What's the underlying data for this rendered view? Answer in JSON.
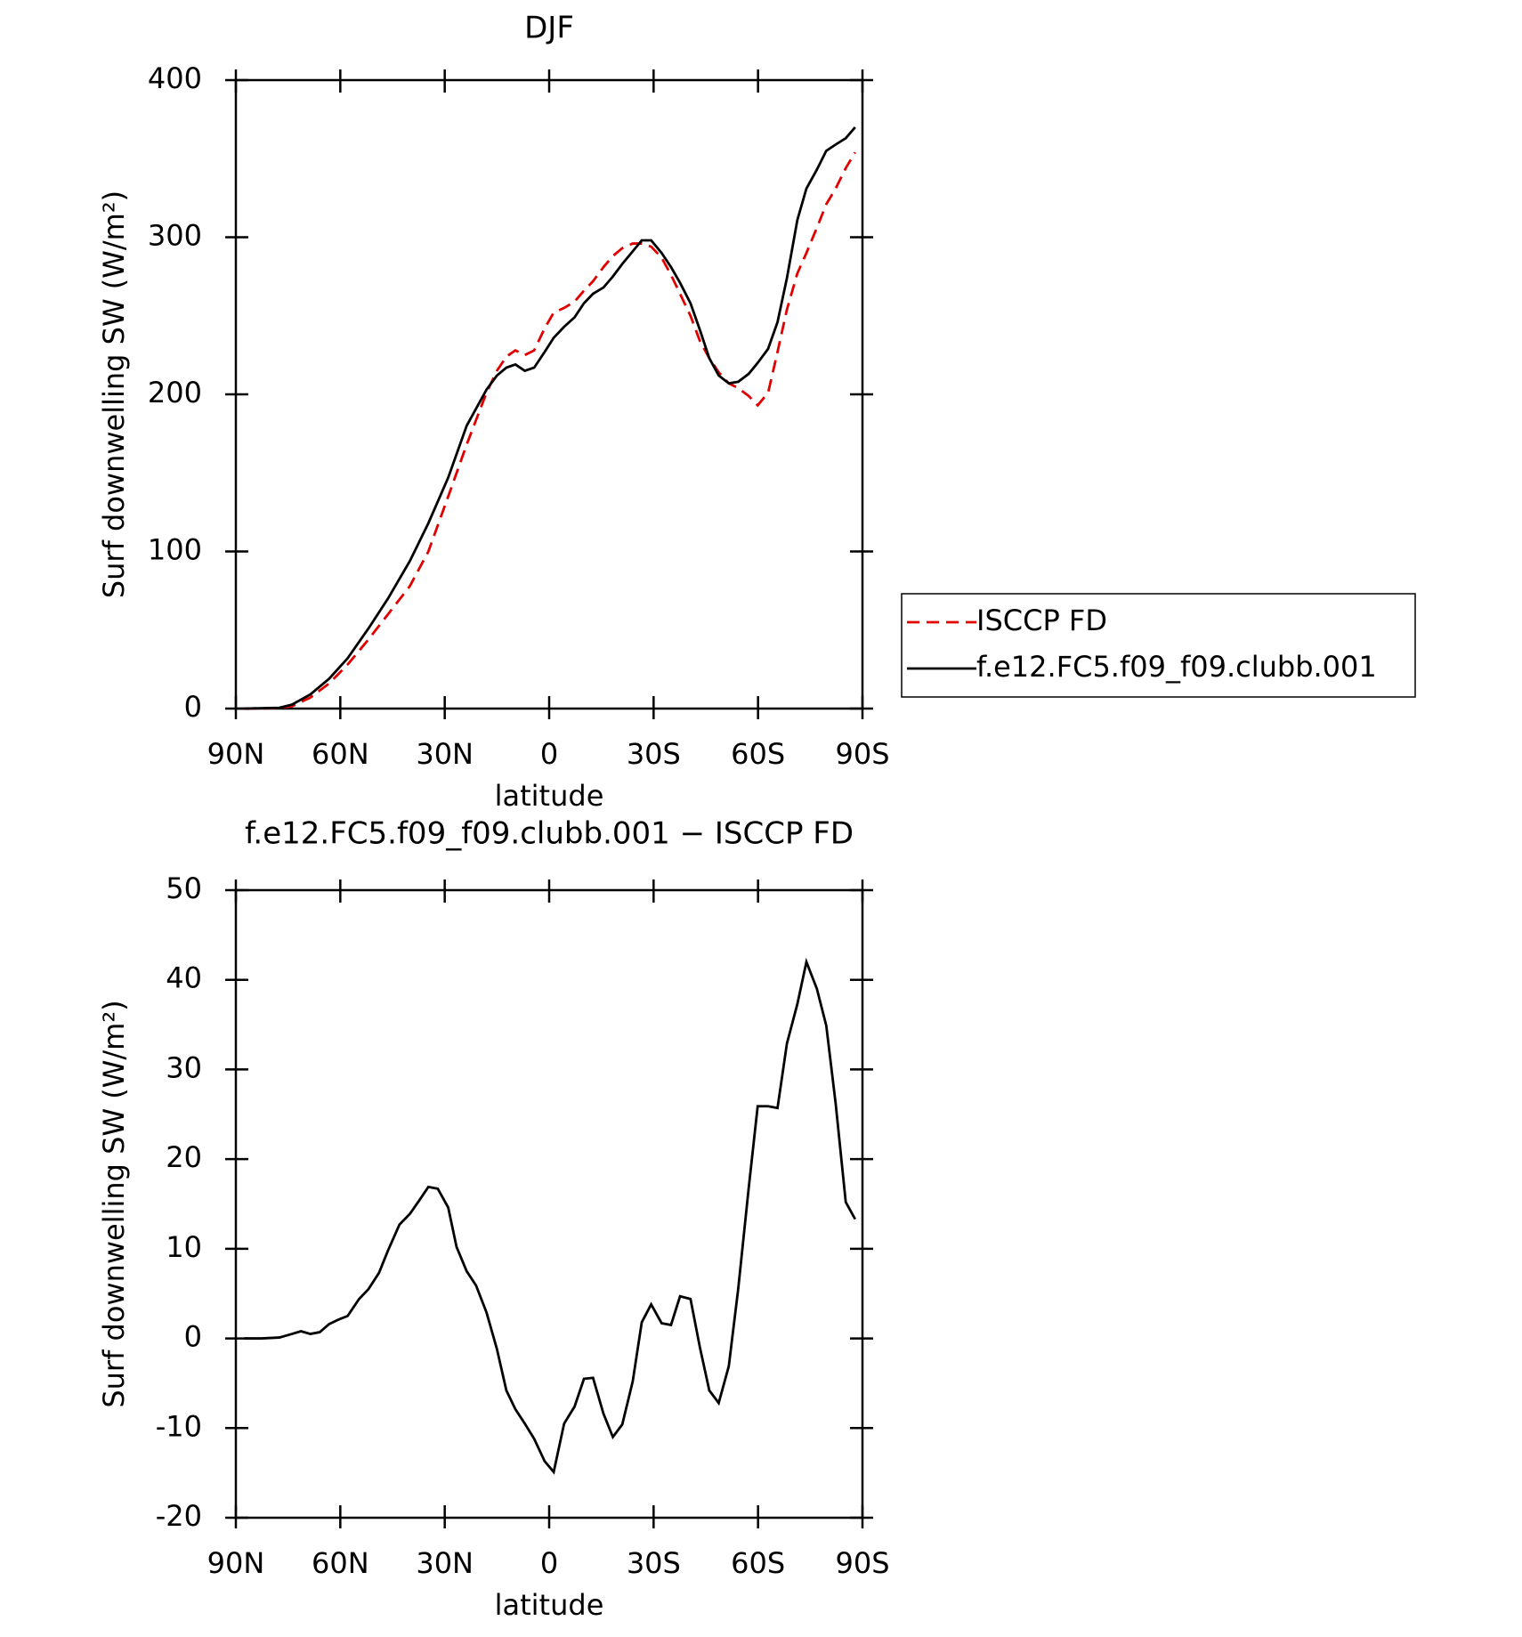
{
  "chart_data": [
    {
      "type": "line",
      "title": "DJF",
      "xlabel": "latitude",
      "ylabel": "Surf downwelling SW (W/m²)",
      "x": [
        87.6,
        77.5,
        73.9,
        68.6,
        63.2,
        57.9,
        51.9,
        46.3,
        40.0,
        34.7,
        29.0,
        23.7,
        18.0,
        15.0,
        12.3,
        9.7,
        7.0,
        4.3,
        1.3,
        -1.3,
        -4.3,
        -7.3,
        -10.0,
        -12.6,
        -15.6,
        -18.3,
        -21.0,
        -24.0,
        -26.6,
        -29.3,
        -32.3,
        -35.0,
        -37.6,
        -40.6,
        -43.3,
        -46.0,
        -48.7,
        -51.6,
        -54.3,
        -57.3,
        -59.9,
        -62.9,
        -65.6,
        -68.3,
        -71.3,
        -73.9,
        -76.9,
        -79.6,
        -82.3,
        -85.2,
        -87.9
      ],
      "series": [
        {
          "name": "ISCCP FD",
          "color": "#e00000",
          "linestyle": "dashed",
          "values": [
            0,
            0.3,
            1.5,
            7,
            16,
            28,
            44,
            60,
            78,
            100,
            135,
            168,
            201,
            215,
            224,
            228,
            225,
            228,
            242,
            252,
            255,
            259,
            266,
            272,
            281,
            288,
            293,
            296,
            296,
            294,
            287,
            276,
            264,
            250,
            234,
            223,
            214,
            207,
            204,
            199,
            193,
            201,
            227,
            254,
            277,
            290,
            306,
            321,
            331,
            344,
            354
          ]
        },
        {
          "name": "f.e12.FC5.f09_f09.clubb.001",
          "color": "#000000",
          "linestyle": "solid",
          "values": [
            0,
            0.5,
            2.5,
            9,
            19,
            32,
            51,
            70,
            94,
            118,
            147,
            180,
            203,
            212,
            217,
            219,
            215,
            217,
            227,
            236,
            243,
            249,
            258,
            264,
            268,
            275,
            283,
            291,
            298,
            298,
            290,
            281,
            271,
            258,
            241,
            223,
            212,
            207,
            208,
            213,
            220,
            229,
            246,
            274,
            311,
            331,
            343,
            355,
            359,
            363,
            370
          ]
        }
      ],
      "xlim": [
        90,
        -90
      ],
      "xticks": [
        {
          "value": 90,
          "label": "90N"
        },
        {
          "value": 60,
          "label": "60N"
        },
        {
          "value": 30,
          "label": "30N"
        },
        0,
        {
          "value": -30,
          "label": "30S"
        },
        {
          "value": -60,
          "label": "60S"
        },
        {
          "value": -90,
          "label": "90S"
        }
      ],
      "ylim": [
        0,
        400
      ],
      "yticks": [
        0,
        100,
        200,
        300,
        400
      ],
      "legend": "right"
    },
    {
      "type": "line",
      "title": "f.e12.FC5.f09_f09.clubb.001 − ISCCP FD",
      "xlabel": "latitude",
      "ylabel": "Surf downwelling SW (W/m²)",
      "x": [
        87.6,
        82.6,
        77.5,
        73.9,
        71.3,
        68.6,
        65.9,
        63.2,
        60.5,
        57.9,
        54.6,
        51.9,
        48.9,
        46.3,
        43.0,
        40.0,
        37.3,
        34.7,
        32.0,
        29.0,
        26.6,
        23.7,
        21.0,
        18.0,
        15.0,
        12.3,
        9.7,
        7.0,
        4.3,
        1.3,
        -1.3,
        -4.3,
        -7.3,
        -10.0,
        -12.6,
        -15.6,
        -18.3,
        -21.0,
        -24.0,
        -26.6,
        -29.3,
        -32.3,
        -35.0,
        -37.6,
        -40.6,
        -43.3,
        -46.0,
        -48.7,
        -51.6,
        -54.3,
        -57.3,
        -59.9,
        -62.9,
        -65.6,
        -68.3,
        -71.3,
        -73.9,
        -76.9,
        -79.6,
        -82.3,
        -85.2,
        -87.9
      ],
      "series": [
        {
          "color": "#000000",
          "linestyle": "solid",
          "values": [
            0,
            0,
            0.1,
            0.5,
            0.8,
            0.5,
            0.7,
            1.6,
            2.1,
            2.5,
            4.4,
            5.5,
            7.3,
            9.8,
            12.7,
            13.9,
            15.4,
            16.9,
            16.7,
            14.6,
            10.2,
            7.5,
            5.9,
            2.9,
            -1.2,
            -5.8,
            -7.9,
            -9.5,
            -11.2,
            -13.7,
            -14.9,
            -9.5,
            -7.6,
            -4.5,
            -4.4,
            -8.4,
            -11.0,
            -9.6,
            -4.8,
            1.8,
            3.8,
            1.7,
            1.5,
            4.7,
            4.4,
            -1.0,
            -5.8,
            -7.2,
            -3.1,
            5.5,
            16.7,
            25.9,
            25.9,
            25.7,
            32.9,
            37.3,
            42.0,
            39.0,
            34.9,
            26.2,
            15.2,
            13.3
          ]
        }
      ],
      "xlim": [
        90,
        -90
      ],
      "xticks": [
        {
          "value": 90,
          "label": "90N"
        },
        {
          "value": 60,
          "label": "60N"
        },
        {
          "value": 30,
          "label": "30N"
        },
        0,
        {
          "value": -30,
          "label": "30S"
        },
        {
          "value": -60,
          "label": "60S"
        },
        {
          "value": -90,
          "label": "90S"
        }
      ],
      "ylim": [
        -20,
        50
      ],
      "yticks": [
        -20,
        -10,
        0,
        10,
        20,
        30,
        40,
        50
      ]
    }
  ]
}
